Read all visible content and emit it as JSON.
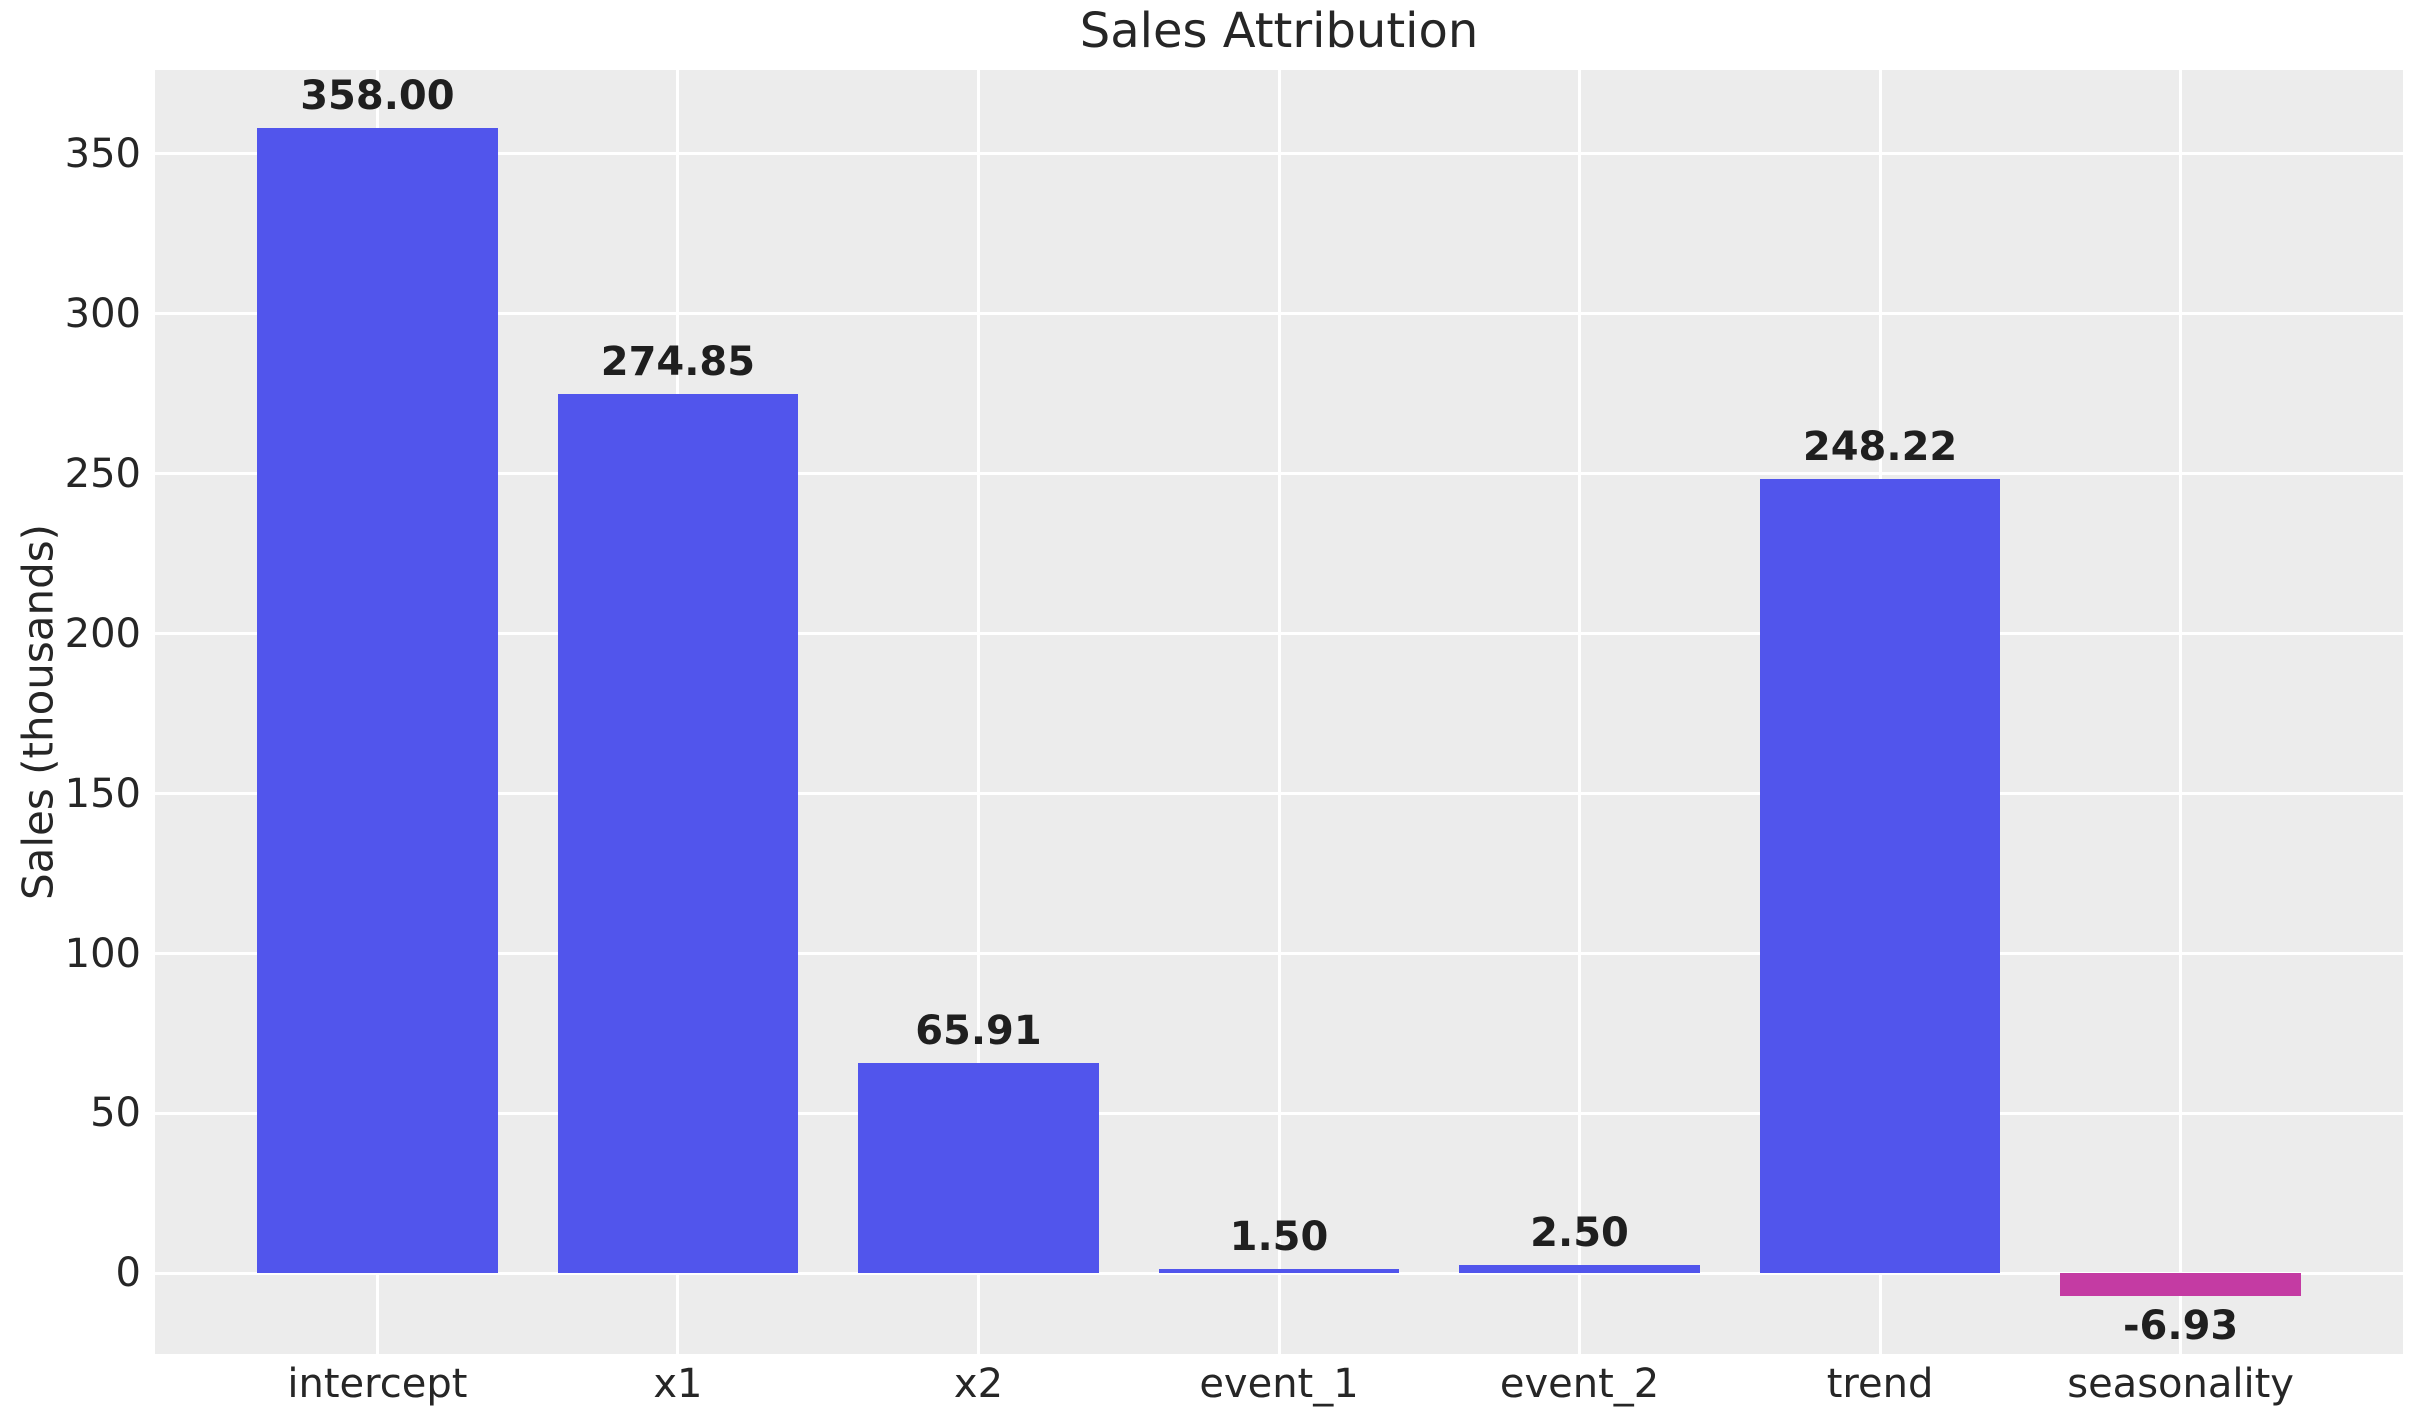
{
  "chart_data": {
    "type": "bar",
    "title": "Sales Attribution",
    "xlabel": "",
    "ylabel": "Sales (thousands)",
    "categories": [
      "intercept",
      "x1",
      "x2",
      "event_1",
      "event_2",
      "trend",
      "seasonality"
    ],
    "values": [
      358.0,
      274.85,
      65.91,
      1.5,
      2.5,
      248.22,
      -6.93
    ],
    "bar_labels": [
      "358.00",
      "274.85",
      "65.91",
      "1.50",
      "2.50",
      "248.22",
      "-6.93"
    ],
    "bar_colors": [
      "#5155ec",
      "#5155ec",
      "#5155ec",
      "#5155ec",
      "#5155ec",
      "#5155ec",
      "#c43ba3"
    ],
    "yticks": [
      0,
      50,
      100,
      150,
      200,
      250,
      300,
      350
    ],
    "ylim": [
      -25.2,
      376.2
    ],
    "xlim": [
      -0.74,
      6.74
    ],
    "bar_width_fraction": 0.8,
    "grid": true,
    "legend": null,
    "colors": {
      "positive_bar": "#5155ec",
      "negative_bar": "#c43ba3",
      "plot_background": "#ececec",
      "figure_background": "#ffffff",
      "gridline": "#ffffff",
      "text": "#262626"
    }
  }
}
